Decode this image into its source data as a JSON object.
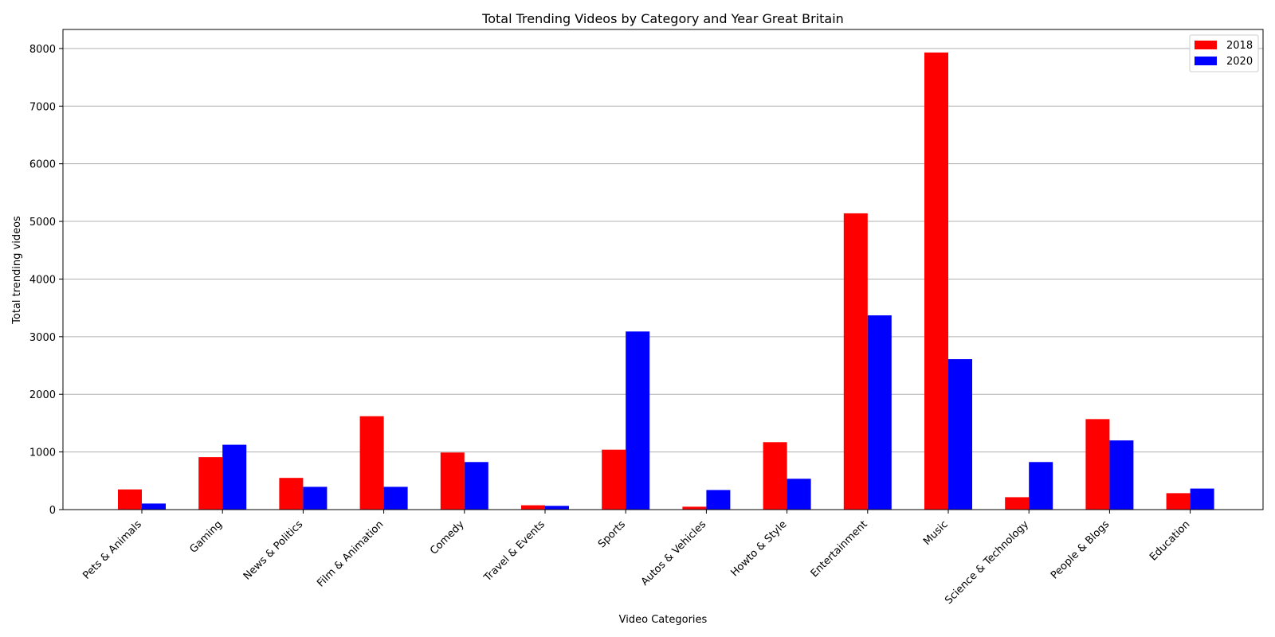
{
  "chart_data": {
    "type": "bar",
    "title": "Total Trending Videos by Category and Year Great Britain",
    "xlabel": "Video Categories",
    "ylabel": "Total trending videos",
    "categories": [
      "Pets & Animals",
      "Gaming",
      "News & Politics",
      "Film & Animation",
      "Comedy",
      "Travel & Events",
      "Sports",
      "Autos & Vehicles",
      "Howto & Style",
      "Entertainment",
      "Music",
      "Science & Technology",
      "People & Blogs",
      "Education"
    ],
    "series": [
      {
        "name": "2018",
        "color": "#ff0000",
        "values": [
          350,
          910,
          550,
          1620,
          990,
          75,
          1040,
          50,
          1170,
          5140,
          7930,
          215,
          1570,
          285
        ]
      },
      {
        "name": "2020",
        "color": "#0000ff",
        "values": [
          105,
          1125,
          395,
          395,
          825,
          65,
          3090,
          340,
          535,
          3370,
          2610,
          825,
          1200,
          365
        ]
      }
    ],
    "ylim": [
      0,
      8330
    ],
    "yticks": [
      0,
      1000,
      2000,
      3000,
      4000,
      5000,
      6000,
      7000,
      8000
    ],
    "grid": "y",
    "legend": "top-right"
  }
}
